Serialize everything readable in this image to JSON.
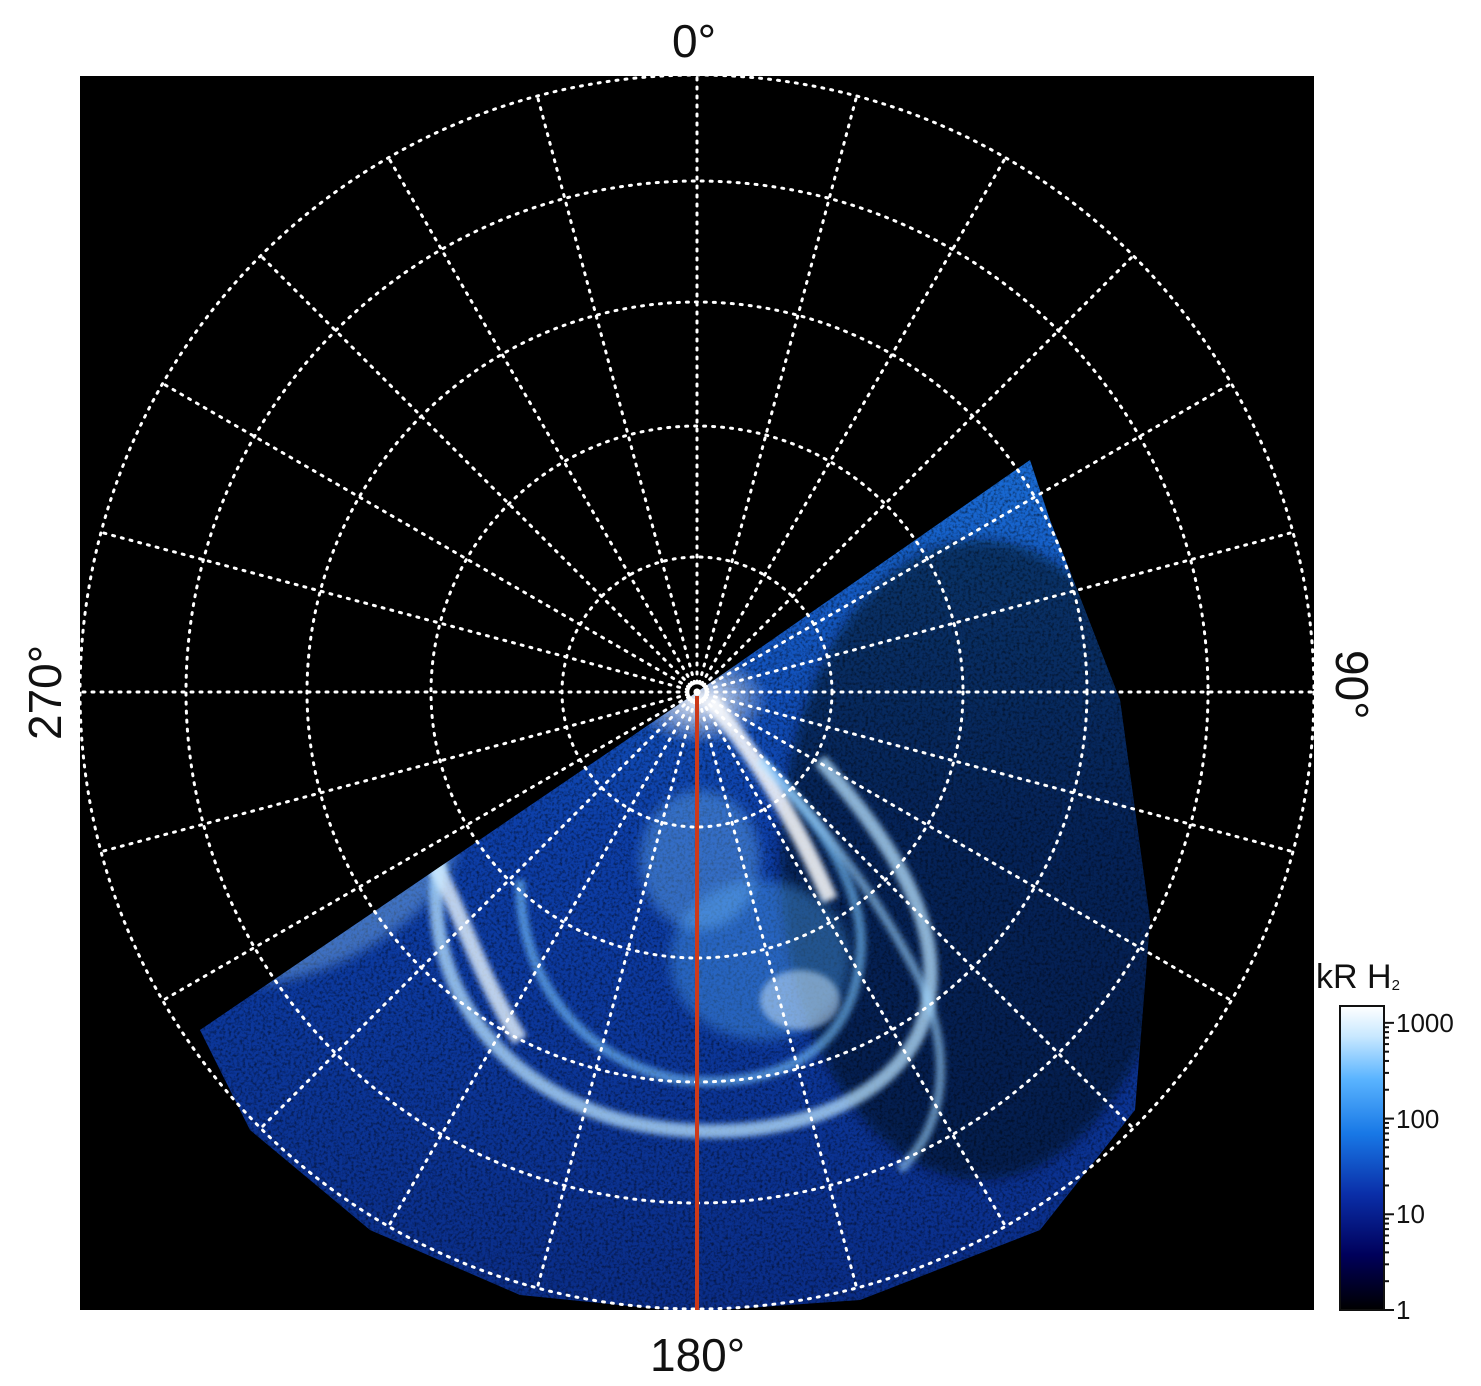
{
  "axis_labels": {
    "top": "0°",
    "bottom": "180°",
    "left": "270°",
    "right": "90°"
  },
  "colorbar": {
    "title": "kR H",
    "title_subscript": "2",
    "scale": "log",
    "ticks": [
      {
        "value": 1000,
        "label": "1000"
      },
      {
        "value": 100,
        "label": "100"
      },
      {
        "value": 10,
        "label": "10"
      },
      {
        "value": 1,
        "label": "1"
      }
    ],
    "range": [
      1,
      1500
    ],
    "colors": [
      "#000000",
      "#00005a",
      "#0a2ea8",
      "#1878e6",
      "#5ab4ff",
      "#c8e8ff",
      "#ffffff"
    ]
  },
  "grid": {
    "style": "dotted",
    "color": "#ffffff",
    "longitude_step_deg": 15
  },
  "marker_line_color": "#cc3a1a",
  "background_color": "#000000"
}
